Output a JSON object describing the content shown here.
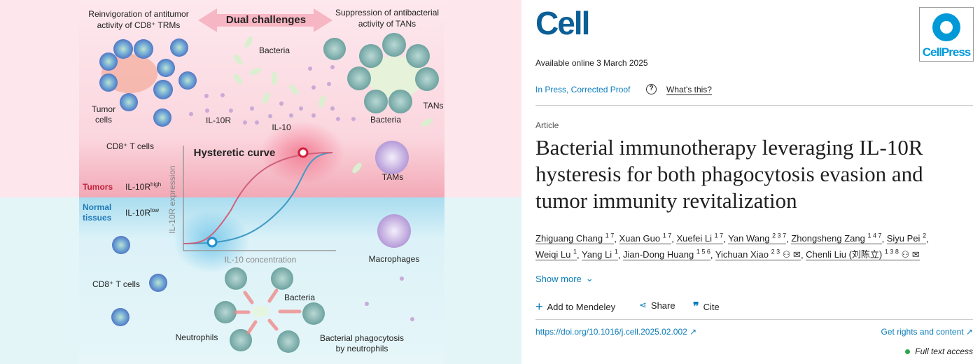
{
  "figure": {
    "top_left_title": [
      "Reinvigoration of antitumor",
      "activity of CD8⁺ TRMs"
    ],
    "center_arrow": "Dual challenges",
    "top_right_title": [
      "Suppression of antibacterial",
      "activity of TANs"
    ],
    "labels": {
      "bacteria_top": "Bacteria",
      "tumor_cells": [
        "Tumor",
        "cells"
      ],
      "cd8_top": "CD8⁺ T cells",
      "il10r": "IL-10R",
      "il10": "IL-10",
      "bacteria_tans": "Bacteria",
      "tans": "TANs",
      "tams": "TAMs",
      "curve_title": "Hysteretic curve",
      "tumors": "Tumors",
      "il10r_high": "IL-10R",
      "high": "high",
      "normal": [
        "Normal",
        "tissues"
      ],
      "il10r_low": "IL-10R",
      "low": "low",
      "y_axis": "IL-10R expression",
      "x_axis": "IL-10 concentration",
      "macrophages": "Macrophages",
      "cd8_bottom": "CD8⁺ T cells",
      "bacteria_bottom": "Bacteria",
      "neutrophils": "Neutrophils",
      "phagocytosis": [
        "Bacterial phagocytosis",
        "by neutrophils"
      ]
    },
    "colors": {
      "tumor_zone": "#fde4ea",
      "normal_zone": "#dff3f8",
      "rising_curve": "#3f9bc4",
      "falling_curve": "#d0607a"
    }
  },
  "journal": {
    "logo": "Cell",
    "publisher_logo": "CellPress"
  },
  "available_online": "Available online 3 March 2025",
  "status": "In Press, Corrected Proof",
  "help_icon": "question-circle-icon",
  "whats_this": "What's this?",
  "article_type": "Article",
  "title": [
    "Bacterial immunotherapy leveraging IL-10R",
    "hysteresis for both phagocytosis evasion and",
    "tumor immunity revitalization"
  ],
  "authors": [
    {
      "name": "Zhiguang Chang",
      "aff": "1 7"
    },
    {
      "name": "Xuan Guo",
      "aff": "1 7"
    },
    {
      "name": "Xuefei Li",
      "aff": "1 7"
    },
    {
      "name": "Yan Wang",
      "aff": "2 3 7"
    },
    {
      "name": "Zhongsheng Zang",
      "aff": "1 4 7"
    },
    {
      "name": "Siyu Pei",
      "aff": "2"
    },
    {
      "name": "Weiqi Lu",
      "aff": "1"
    },
    {
      "name": "Yang Li",
      "aff": "1"
    },
    {
      "name": "Jian-Dong Huang",
      "aff": "1 5 6"
    },
    {
      "name": "Yichuan Xiao",
      "aff": "2 3",
      "icons": true
    },
    {
      "name": "Chenli Liu (刘陈立)",
      "aff": "1 3 8",
      "icons": true
    }
  ],
  "show_more": "Show more",
  "actions": {
    "mendeley": "Add to Mendeley",
    "share": "Share",
    "cite": "Cite"
  },
  "doi": "https://doi.org/10.1016/j.cell.2025.02.002",
  "rights": "Get rights and content",
  "access": "Full text access",
  "access_color": "#2ea44f"
}
